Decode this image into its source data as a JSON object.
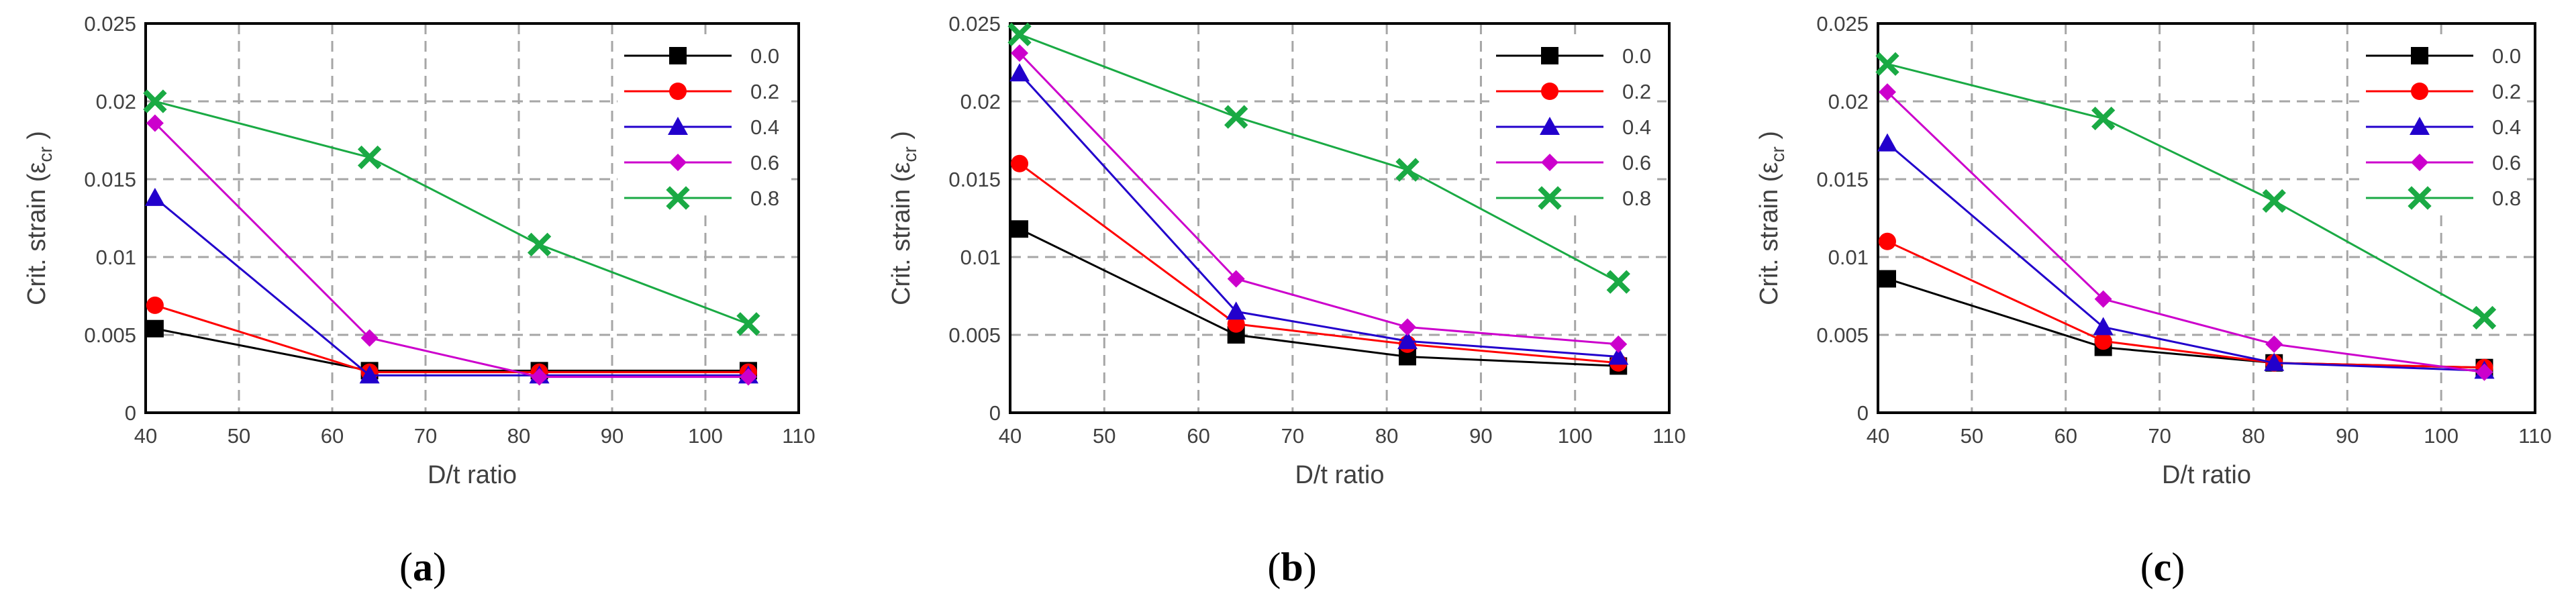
{
  "chart_data": [
    {
      "type": "line",
      "panel": "a",
      "panel_label": "a",
      "xlabel": "D/t ratio",
      "ylabel": "Crit. strain (ε",
      "ylabel_sub": "cr",
      "ylabel_close": " )",
      "xlim": [
        40,
        110
      ],
      "ylim": [
        0,
        0.025
      ],
      "xticks": [
        40,
        50,
        60,
        70,
        80,
        90,
        100,
        110
      ],
      "yticks": [
        "0",
        "0.005",
        "0.01",
        "0.015",
        "0.02",
        "0.025"
      ],
      "x": [
        41,
        64,
        82.2,
        104.6
      ],
      "series": [
        {
          "name": "0.0",
          "color": "#000000",
          "marker": "square",
          "values": [
            0.0054,
            0.0027,
            0.0027,
            0.0027
          ]
        },
        {
          "name": "0.2",
          "color": "#ff0000",
          "marker": "circle",
          "values": [
            0.0069,
            0.0026,
            0.0026,
            0.0026
          ]
        },
        {
          "name": "0.4",
          "color": "#2200cc",
          "marker": "triangle",
          "values": [
            0.0138,
            0.0024,
            0.0024,
            0.0024
          ]
        },
        {
          "name": "0.6",
          "color": "#cc00cc",
          "marker": "diamond",
          "values": [
            0.0186,
            0.0048,
            0.0023,
            0.0023
          ]
        },
        {
          "name": "0.8",
          "color": "#1aaa44",
          "marker": "x",
          "values": [
            0.02,
            0.0164,
            0.0108,
            0.0057
          ]
        }
      ]
    },
    {
      "type": "line",
      "panel": "b",
      "panel_label": "b",
      "xlabel": "D/t ratio",
      "ylabel": "Crit. strain (ε",
      "ylabel_sub": "cr",
      "ylabel_close": " )",
      "xlim": [
        40,
        110
      ],
      "ylim": [
        0,
        0.025
      ],
      "xticks": [
        40,
        50,
        60,
        70,
        80,
        90,
        100,
        110
      ],
      "yticks": [
        "0",
        "0.005",
        "0.01",
        "0.015",
        "0.02",
        "0.025"
      ],
      "x": [
        41,
        64,
        82.2,
        104.6
      ],
      "series": [
        {
          "name": "0.0",
          "color": "#000000",
          "marker": "square",
          "values": [
            0.0118,
            0.005,
            0.0036,
            0.003
          ]
        },
        {
          "name": "0.2",
          "color": "#ff0000",
          "marker": "circle",
          "values": [
            0.016,
            0.0057,
            0.0044,
            0.0032
          ]
        },
        {
          "name": "0.4",
          "color": "#2200cc",
          "marker": "triangle",
          "values": [
            0.0218,
            0.0065,
            0.0046,
            0.0036
          ]
        },
        {
          "name": "0.6",
          "color": "#cc00cc",
          "marker": "diamond",
          "values": [
            0.0231,
            0.0086,
            0.0055,
            0.0044
          ]
        },
        {
          "name": "0.8",
          "color": "#1aaa44",
          "marker": "x",
          "values": [
            0.0243,
            0.019,
            0.0156,
            0.0084
          ]
        }
      ]
    },
    {
      "type": "line",
      "panel": "c",
      "panel_label": "c",
      "xlabel": "D/t ratio",
      "ylabel": "Crit. strain (ε",
      "ylabel_sub": "cr",
      "ylabel_close": " )",
      "xlim": [
        40,
        110
      ],
      "ylim": [
        0,
        0.025
      ],
      "xticks": [
        40,
        50,
        60,
        70,
        80,
        90,
        100,
        110
      ],
      "yticks": [
        "0",
        "0.005",
        "0.01",
        "0.015",
        "0.02",
        "0.025"
      ],
      "x": [
        41,
        64,
        82.2,
        104.6
      ],
      "series": [
        {
          "name": "0.0",
          "color": "#000000",
          "marker": "square",
          "values": [
            0.0086,
            0.0042,
            0.0032,
            0.0029
          ]
        },
        {
          "name": "0.2",
          "color": "#ff0000",
          "marker": "circle",
          "values": [
            0.011,
            0.0046,
            0.0032,
            0.0029
          ]
        },
        {
          "name": "0.4",
          "color": "#2200cc",
          "marker": "triangle",
          "values": [
            0.0173,
            0.0055,
            0.0032,
            0.0027
          ]
        },
        {
          "name": "0.6",
          "color": "#cc00cc",
          "marker": "diamond",
          "values": [
            0.0206,
            0.0073,
            0.0044,
            0.0026
          ]
        },
        {
          "name": "0.8",
          "color": "#1aaa44",
          "marker": "x",
          "values": [
            0.0224,
            0.0189,
            0.0136,
            0.0061
          ]
        }
      ]
    }
  ]
}
